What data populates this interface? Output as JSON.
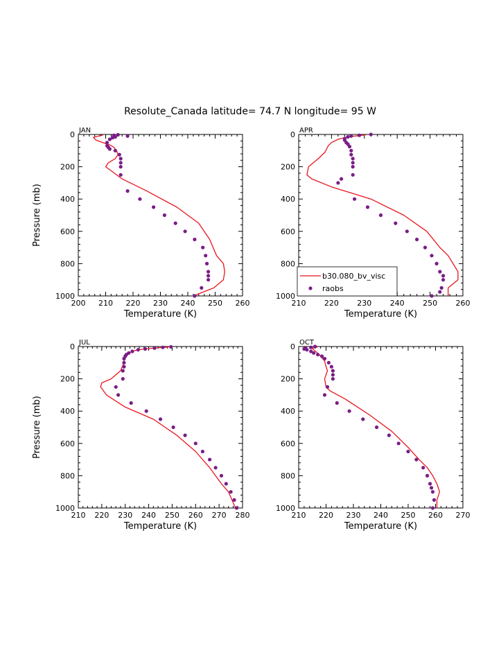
{
  "title": "Resolute_Canada  latitude= 74.7 N longitude= 95 W",
  "colors": {
    "model": "#e8141e",
    "obs": "#7a1d86",
    "axis": "#000000"
  },
  "legend": {
    "model_label": "b30.080_bv_visc",
    "obs_label": "raobs"
  },
  "chart_data": [
    {
      "type": "line",
      "panel_label": "JAN",
      "xlabel": "Temperature (K)",
      "ylabel": "Pressure (mb)",
      "xlim": [
        200,
        260
      ],
      "ylim": [
        1000,
        0
      ],
      "xticks": [
        "200",
        "210",
        "220",
        "230",
        "240",
        "250",
        "260"
      ],
      "yticks": [
        "0",
        "200",
        "400",
        "600",
        "800",
        "1000"
      ],
      "series": [
        {
          "name": "b30.080_bv_visc",
          "kind": "line",
          "t": [
            209,
            205.5,
            206.5,
            209,
            211.5,
            213,
            214,
            214.5,
            213.5,
            211,
            210,
            212,
            216,
            225,
            236,
            244,
            248,
            250.5,
            253,
            253.5,
            253,
            249.5,
            242
          ],
          "p": [
            3,
            18,
            35,
            50,
            65,
            80,
            100,
            125,
            150,
            175,
            200,
            225,
            275,
            350,
            450,
            550,
            650,
            750,
            800,
            850,
            900,
            950,
            1000
          ]
        },
        {
          "name": "raobs",
          "kind": "scatter",
          "t": [
            214.5,
            213,
            218,
            213.5,
            212.5,
            211.5,
            210.5,
            210.5,
            211,
            211.5,
            213.5,
            215,
            215.5,
            215.5,
            215.5,
            215.5,
            218,
            222.5,
            227.5,
            231.5,
            235.5,
            239,
            242.5,
            245.5,
            246.5,
            247,
            247.5,
            247.5,
            247.5,
            245,
            242.5
          ],
          "p": [
            2,
            5,
            10,
            15,
            20,
            30,
            50,
            70,
            80,
            90,
            100,
            125,
            150,
            175,
            200,
            250,
            350,
            400,
            450,
            500,
            550,
            600,
            650,
            700,
            750,
            800,
            850,
            875,
            900,
            950,
            1000
          ]
        }
      ]
    },
    {
      "type": "line",
      "panel_label": "APR",
      "xlabel": "Temperature (K)",
      "ylabel": "",
      "xlim": [
        210,
        260
      ],
      "ylim": [
        1000,
        0
      ],
      "xticks": [
        "210",
        "220",
        "230",
        "240",
        "250",
        "260"
      ],
      "yticks": [
        "0",
        "200",
        "400",
        "600",
        "800",
        "1000"
      ],
      "series": [
        {
          "name": "b30.080_bv_visc",
          "kind": "line",
          "t": [
            230.5,
            225,
            222,
            220,
            219,
            218.5,
            218,
            216,
            213,
            212.5,
            214,
            220,
            232,
            242,
            249,
            253,
            255.5,
            257,
            258.5,
            258.5,
            255.5,
            255.5
          ],
          "p": [
            2,
            15,
            30,
            50,
            70,
            90,
            110,
            150,
            200,
            250,
            275,
            325,
            400,
            500,
            600,
            700,
            750,
            800,
            850,
            900,
            950,
            1000
          ]
        },
        {
          "name": "raobs",
          "kind": "scatter",
          "t": [
            232,
            228.5,
            226,
            225,
            224,
            224,
            224.5,
            225,
            225.5,
            226,
            226,
            226.5,
            226.5,
            226.5,
            226.5,
            223,
            222,
            227,
            231,
            235,
            239.5,
            243,
            246,
            248.5,
            250.5,
            252,
            253,
            254,
            254,
            253.5,
            253,
            250.5
          ],
          "p": [
            0,
            5,
            10,
            15,
            25,
            35,
            50,
            60,
            75,
            100,
            125,
            150,
            175,
            200,
            250,
            275,
            300,
            400,
            450,
            500,
            550,
            600,
            650,
            700,
            750,
            800,
            850,
            875,
            900,
            950,
            975,
            1000
          ]
        }
      ]
    },
    {
      "type": "line",
      "panel_label": "JUL",
      "xlabel": "Temperature (K)",
      "ylabel": "Pressure (mb)",
      "xlim": [
        210,
        280
      ],
      "ylim": [
        1000,
        0
      ],
      "xticks": [
        "210",
        "220",
        "230",
        "240",
        "250",
        "260",
        "270",
        "280"
      ],
      "yticks": [
        "0",
        "200",
        "400",
        "600",
        "800",
        "1000"
      ],
      "series": [
        {
          "name": "b30.080_bv_visc",
          "kind": "line",
          "t": [
            248.5,
            244,
            238,
            234,
            231.5,
            230,
            229.5,
            229.5,
            228,
            224,
            220,
            219.5,
            222,
            230,
            242,
            252,
            260,
            266,
            271,
            274,
            275.5,
            277
          ],
          "p": [
            3,
            8,
            15,
            25,
            40,
            60,
            80,
            100,
            150,
            200,
            225,
            250,
            300,
            375,
            450,
            550,
            650,
            750,
            850,
            900,
            950,
            1000
          ]
        },
        {
          "name": "raobs",
          "kind": "scatter",
          "t": [
            249.5,
            246,
            242.5,
            238.5,
            235.5,
            233,
            231.5,
            230.5,
            230,
            229.5,
            229.5,
            229.5,
            229,
            229,
            226,
            227,
            232.5,
            239,
            245,
            250.5,
            255.5,
            260,
            263,
            266,
            268.5,
            271,
            273,
            275,
            276.5,
            277.5
          ],
          "p": [
            2,
            5,
            10,
            15,
            20,
            30,
            40,
            50,
            60,
            75,
            100,
            125,
            150,
            200,
            250,
            300,
            350,
            400,
            450,
            500,
            550,
            600,
            650,
            700,
            750,
            800,
            850,
            900,
            950,
            1000
          ]
        }
      ]
    },
    {
      "type": "line",
      "panel_label": "OCT",
      "xlabel": "Temperature (K)",
      "ylabel": "",
      "xlim": [
        210,
        270
      ],
      "ylim": [
        1000,
        0
      ],
      "xticks": [
        "210",
        "220",
        "230",
        "240",
        "250",
        "260",
        "270"
      ],
      "yticks": [
        "0",
        "200",
        "400",
        "600",
        "800",
        "1000"
      ],
      "series": [
        {
          "name": "b30.080_bv_visc",
          "kind": "line",
          "t": [
            217,
            215,
            215.5,
            216.5,
            217.5,
            218.5,
            219.5,
            220,
            220.5,
            220,
            219.5,
            220,
            221.5,
            227,
            236,
            244,
            250,
            254,
            257,
            259,
            260.5,
            261.5,
            260.5,
            260.5
          ],
          "p": [
            2,
            10,
            20,
            35,
            50,
            70,
            90,
            125,
            150,
            175,
            200,
            250,
            275,
            325,
            425,
            525,
            625,
            700,
            750,
            800,
            850,
            900,
            950,
            1000
          ]
        },
        {
          "name": "raobs",
          "kind": "scatter",
          "t": [
            216,
            214.5,
            212.5,
            212,
            213,
            214.5,
            215.5,
            217,
            218.5,
            219.5,
            221,
            222,
            222.5,
            222.5,
            222.5,
            220.5,
            219.5,
            224,
            228.5,
            233.5,
            238.5,
            243,
            246.5,
            250,
            253,
            255.5,
            257,
            258,
            258.5,
            259,
            259.5,
            259
          ],
          "p": [
            0,
            5,
            10,
            15,
            20,
            30,
            40,
            50,
            60,
            75,
            100,
            125,
            150,
            175,
            200,
            250,
            300,
            350,
            400,
            450,
            500,
            550,
            600,
            650,
            700,
            750,
            800,
            850,
            875,
            900,
            950,
            1000
          ]
        }
      ]
    }
  ]
}
